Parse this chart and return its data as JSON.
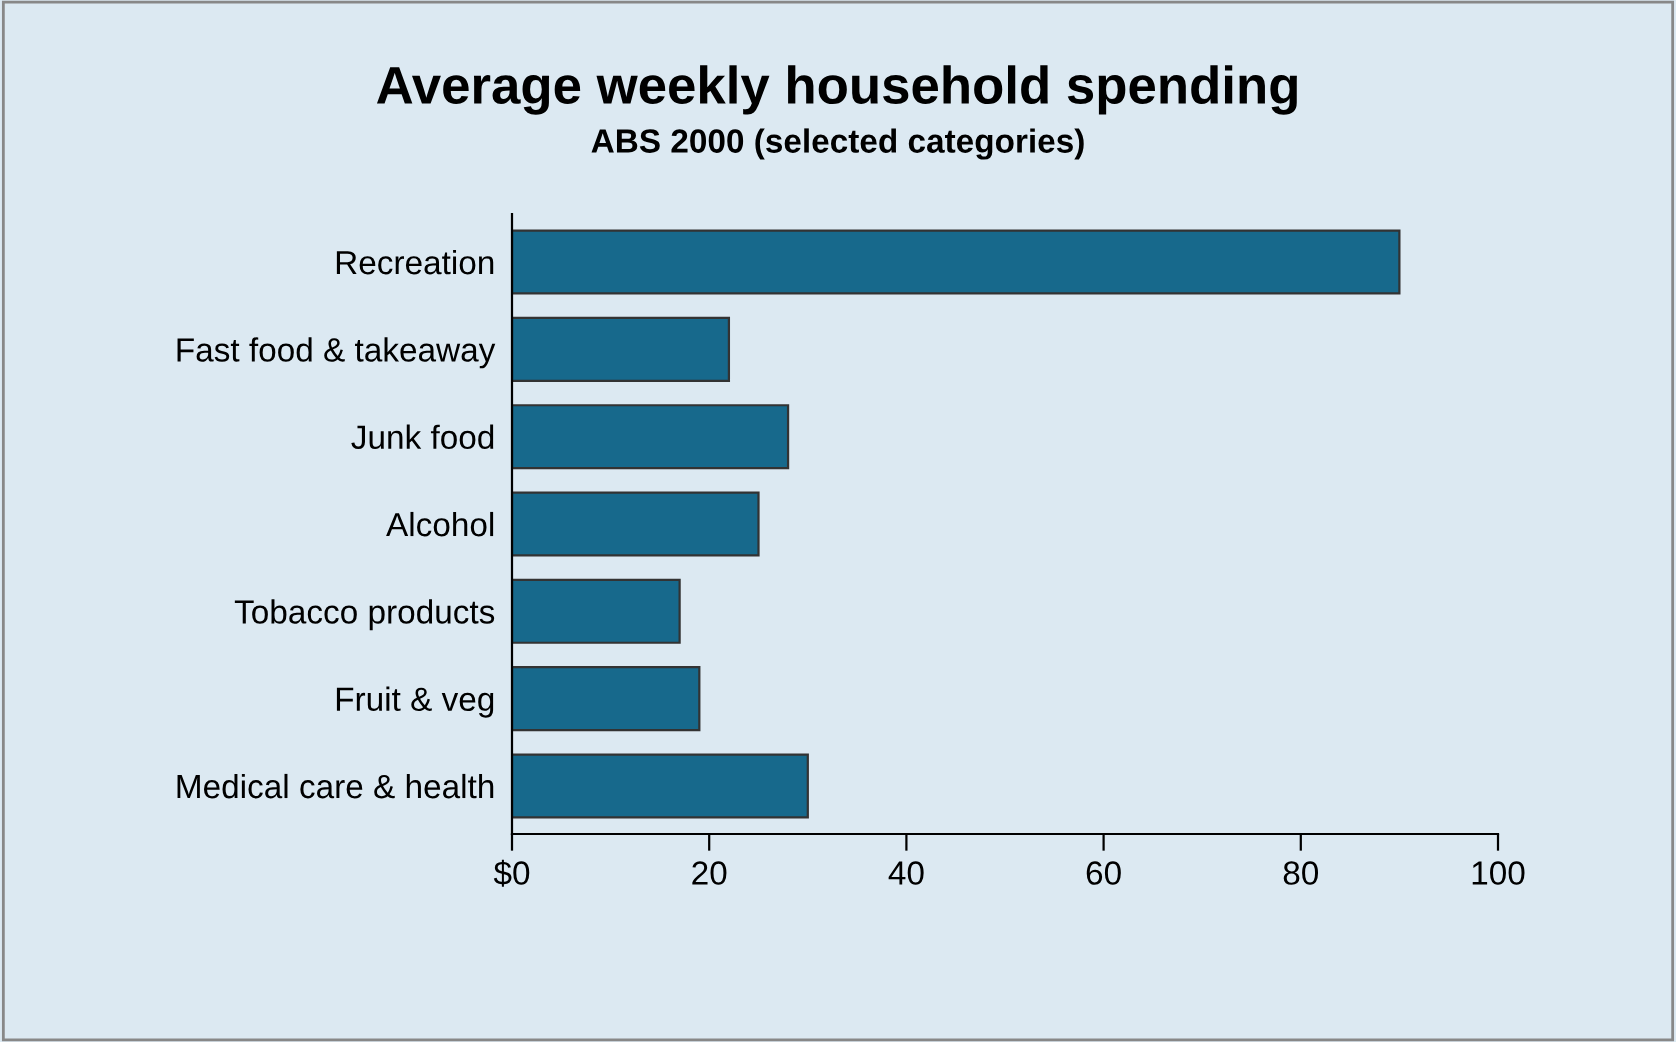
{
  "chart_data": {
    "type": "bar",
    "orientation": "horizontal",
    "title": "Average weekly household spending",
    "subtitle": "ABS 2000 (selected categories)",
    "categories": [
      "Recreation",
      "Fast food & takeaway",
      "Junk food",
      "Alcohol",
      "Tobacco products",
      "Fruit & veg",
      "Medical care & health"
    ],
    "values": [
      90,
      22,
      28,
      25,
      17,
      19,
      30
    ],
    "color": "#17698c",
    "xlim": [
      0,
      100
    ],
    "xticks": [
      {
        "value": 0,
        "label": "$0"
      },
      20,
      40,
      60,
      80,
      100
    ],
    "grid": false,
    "legend": false
  }
}
